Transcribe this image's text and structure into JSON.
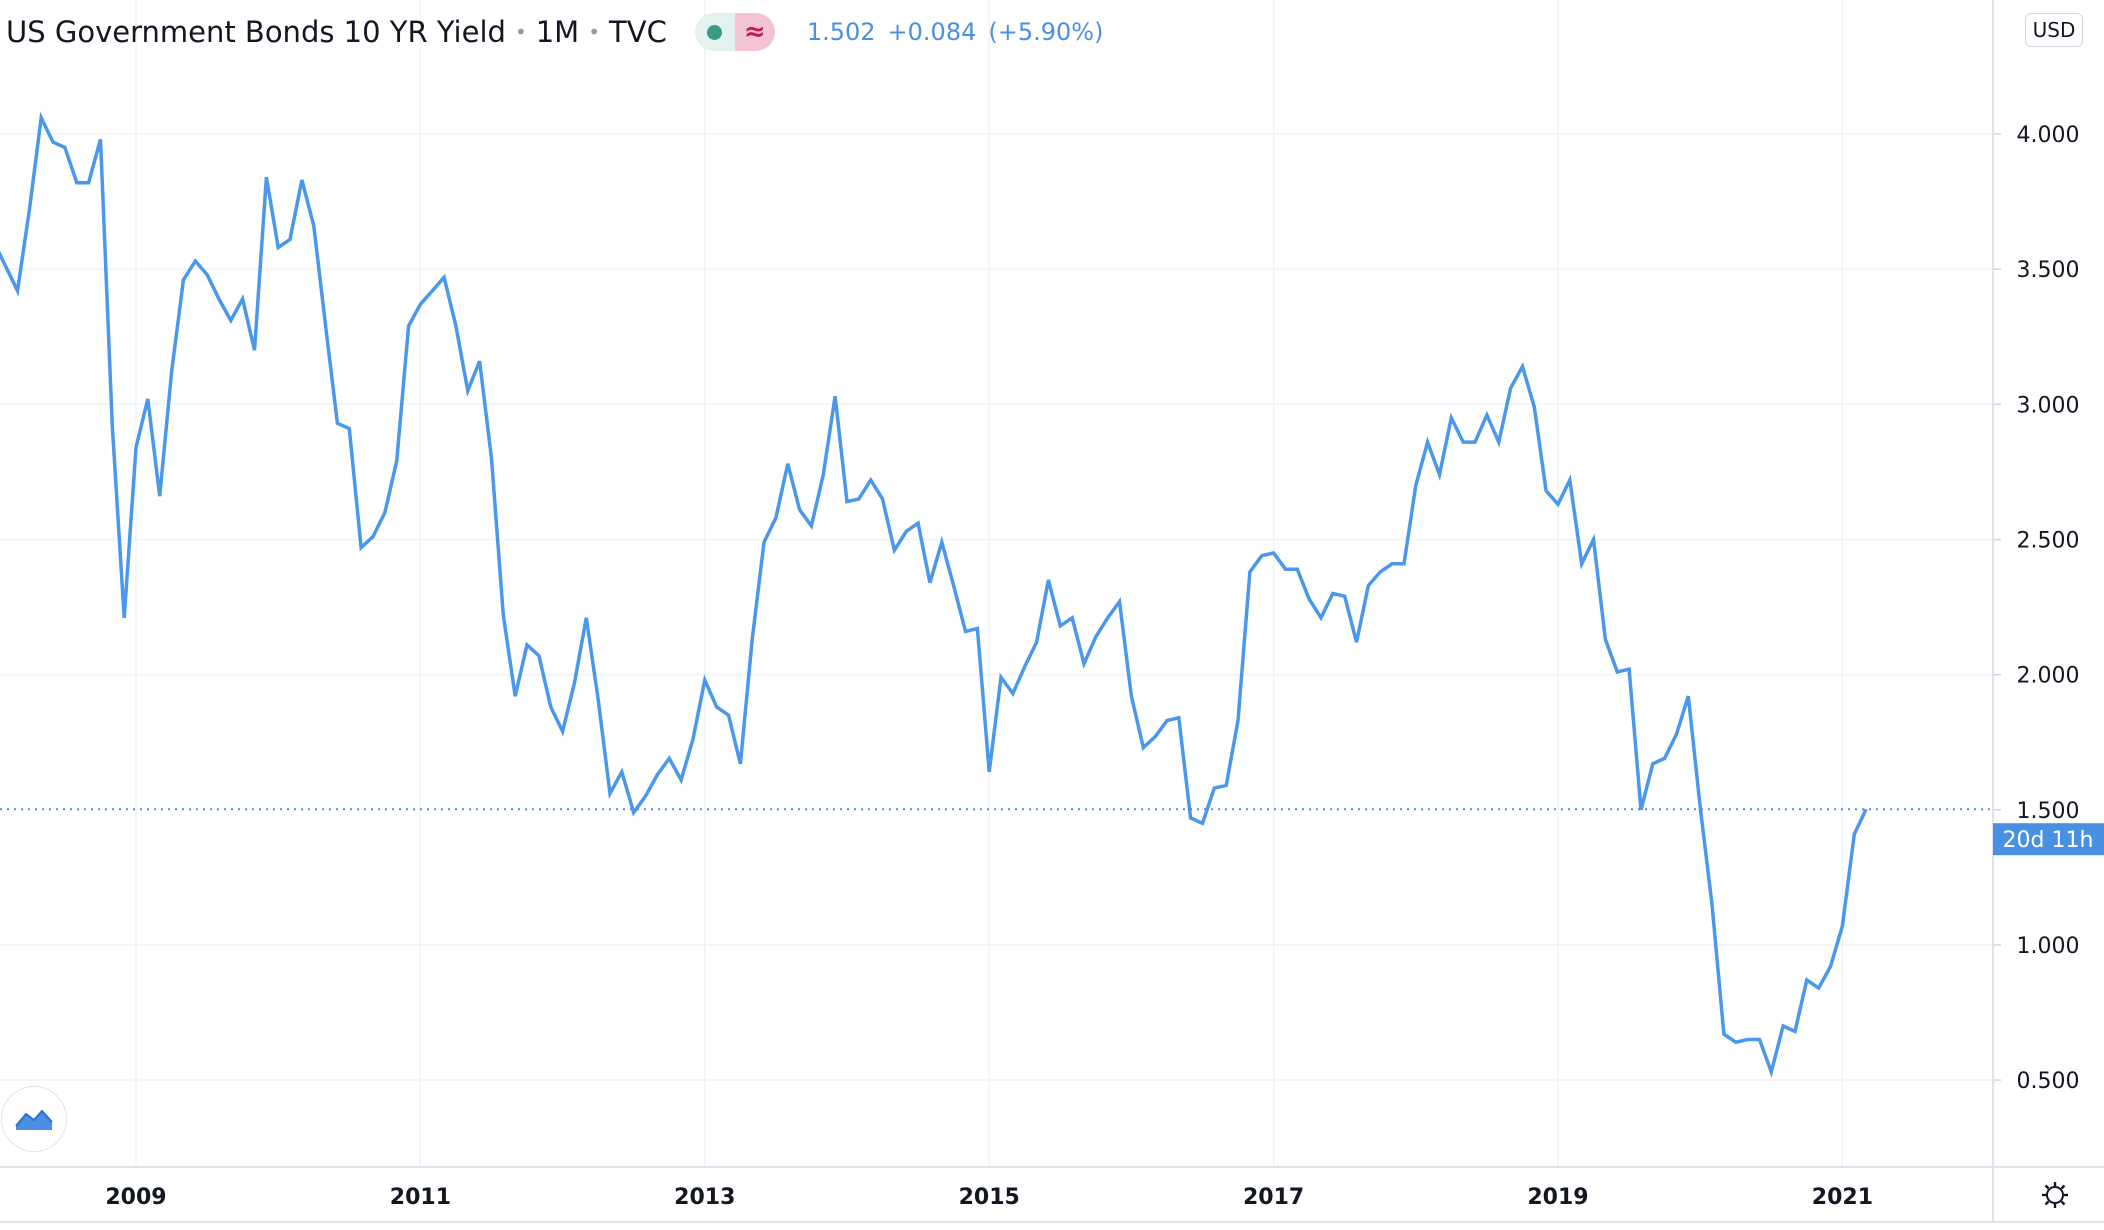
{
  "header": {
    "title": "US Government Bonds 10 YR Yield",
    "interval": "1M",
    "source": "TVC",
    "status_icons": [
      "market-status-dot-icon",
      "delayed-data-icon"
    ],
    "status_colors": {
      "dot": "#3d9a86",
      "delayed": "#c2185b"
    },
    "last_price": "1.502",
    "change": "+0.084",
    "change_percent": "(+5.90%)"
  },
  "currency_button": "USD",
  "price_label": "20d 11h",
  "colors": {
    "line": "#4a97eb",
    "accent": "#4a90e2",
    "grid": "#f0f3fa"
  },
  "icons": {
    "logo": "tradingview-logo-icon",
    "settings": "gear-icon"
  },
  "chart_data": {
    "type": "line",
    "title": "US Government Bonds 10 YR Yield",
    "xlabel": "",
    "ylabel": "",
    "ylim": [
      0.25,
      4.25
    ],
    "yticks": [
      "4.000",
      "3.500",
      "3.000",
      "2.500",
      "2.000",
      "1.500",
      "1.000",
      "0.500"
    ],
    "ytick_values": [
      4.0,
      3.5,
      3.0,
      2.5,
      2.0,
      1.5,
      1.0,
      0.5
    ],
    "xticks": [
      "2009",
      "2011",
      "2013",
      "2015",
      "2017",
      "2019",
      "2021"
    ],
    "grid": true,
    "current_value": 1.502,
    "x": [
      "2008-01",
      "2008-02",
      "2008-03",
      "2008-04",
      "2008-05",
      "2008-06",
      "2008-07",
      "2008-08",
      "2008-09",
      "2008-10",
      "2008-11",
      "2008-12",
      "2009-01",
      "2009-02",
      "2009-03",
      "2009-04",
      "2009-05",
      "2009-06",
      "2009-07",
      "2009-08",
      "2009-09",
      "2009-10",
      "2009-11",
      "2009-12",
      "2010-01",
      "2010-02",
      "2010-03",
      "2010-04",
      "2010-05",
      "2010-06",
      "2010-07",
      "2010-08",
      "2010-09",
      "2010-10",
      "2010-11",
      "2010-12",
      "2011-01",
      "2011-02",
      "2011-03",
      "2011-04",
      "2011-05",
      "2011-06",
      "2011-07",
      "2011-08",
      "2011-09",
      "2011-10",
      "2011-11",
      "2011-12",
      "2012-01",
      "2012-02",
      "2012-03",
      "2012-04",
      "2012-05",
      "2012-06",
      "2012-07",
      "2012-08",
      "2012-09",
      "2012-10",
      "2012-11",
      "2012-12",
      "2013-01",
      "2013-02",
      "2013-03",
      "2013-04",
      "2013-05",
      "2013-06",
      "2013-07",
      "2013-08",
      "2013-09",
      "2013-10",
      "2013-11",
      "2013-12",
      "2014-01",
      "2014-02",
      "2014-03",
      "2014-04",
      "2014-05",
      "2014-06",
      "2014-07",
      "2014-08",
      "2014-09",
      "2014-10",
      "2014-11",
      "2014-12",
      "2015-01",
      "2015-02",
      "2015-03",
      "2015-04",
      "2015-05",
      "2015-06",
      "2015-07",
      "2015-08",
      "2015-09",
      "2015-10",
      "2015-11",
      "2015-12",
      "2016-01",
      "2016-02",
      "2016-03",
      "2016-04",
      "2016-05",
      "2016-06",
      "2016-07",
      "2016-08",
      "2016-09",
      "2016-10",
      "2016-11",
      "2016-12",
      "2017-01",
      "2017-02",
      "2017-03",
      "2017-04",
      "2017-05",
      "2017-06",
      "2017-07",
      "2017-08",
      "2017-09",
      "2017-10",
      "2017-11",
      "2017-12",
      "2018-01",
      "2018-02",
      "2018-03",
      "2018-04",
      "2018-05",
      "2018-06",
      "2018-07",
      "2018-08",
      "2018-09",
      "2018-10",
      "2018-11",
      "2018-12",
      "2019-01",
      "2019-02",
      "2019-03",
      "2019-04",
      "2019-05",
      "2019-06",
      "2019-07",
      "2019-08",
      "2019-09",
      "2019-10",
      "2019-11",
      "2019-12",
      "2020-01",
      "2020-02",
      "2020-03",
      "2020-04",
      "2020-05",
      "2020-06",
      "2020-07",
      "2020-08",
      "2020-09",
      "2020-10",
      "2020-11",
      "2020-12",
      "2021-01",
      "2021-02",
      "2021-03"
    ],
    "y": [
      3.6,
      3.51,
      3.42,
      3.72,
      4.06,
      3.97,
      3.95,
      3.82,
      3.82,
      3.98,
      2.92,
      2.21,
      2.84,
      3.02,
      2.66,
      3.12,
      3.46,
      3.53,
      3.48,
      3.39,
      3.31,
      3.39,
      3.2,
      3.84,
      3.58,
      3.61,
      3.83,
      3.66,
      3.29,
      2.93,
      2.91,
      2.47,
      2.51,
      2.6,
      2.79,
      3.29,
      3.37,
      3.42,
      3.47,
      3.29,
      3.05,
      3.16,
      2.8,
      2.22,
      1.92,
      2.11,
      2.07,
      1.88,
      1.79,
      1.97,
      2.21,
      1.91,
      1.56,
      1.64,
      1.49,
      1.55,
      1.63,
      1.69,
      1.61,
      1.76,
      1.98,
      1.88,
      1.85,
      1.67,
      2.13,
      2.49,
      2.58,
      2.78,
      2.61,
      2.55,
      2.74,
      3.03,
      2.64,
      2.65,
      2.72,
      2.65,
      2.46,
      2.53,
      2.56,
      2.34,
      2.49,
      2.33,
      2.16,
      2.17,
      1.64,
      1.99,
      1.93,
      2.03,
      2.12,
      2.35,
      2.18,
      2.21,
      2.04,
      2.14,
      2.21,
      2.27,
      1.92,
      1.73,
      1.77,
      1.83,
      1.84,
      1.47,
      1.45,
      1.58,
      1.59,
      1.83,
      2.38,
      2.44,
      2.45,
      2.39,
      2.39,
      2.28,
      2.21,
      2.3,
      2.29,
      2.12,
      2.33,
      2.38,
      2.41,
      2.41,
      2.7,
      2.86,
      2.74,
      2.95,
      2.86,
      2.86,
      2.96,
      2.86,
      3.06,
      3.14,
      2.99,
      2.68,
      2.63,
      2.72,
      2.41,
      2.5,
      2.13,
      2.01,
      2.02,
      1.5,
      1.67,
      1.69,
      1.78,
      1.92,
      1.51,
      1.15,
      0.67,
      0.64,
      0.65,
      0.65,
      0.53,
      0.7,
      0.68,
      0.87,
      0.84,
      0.92,
      1.07,
      1.41,
      1.502
    ]
  }
}
